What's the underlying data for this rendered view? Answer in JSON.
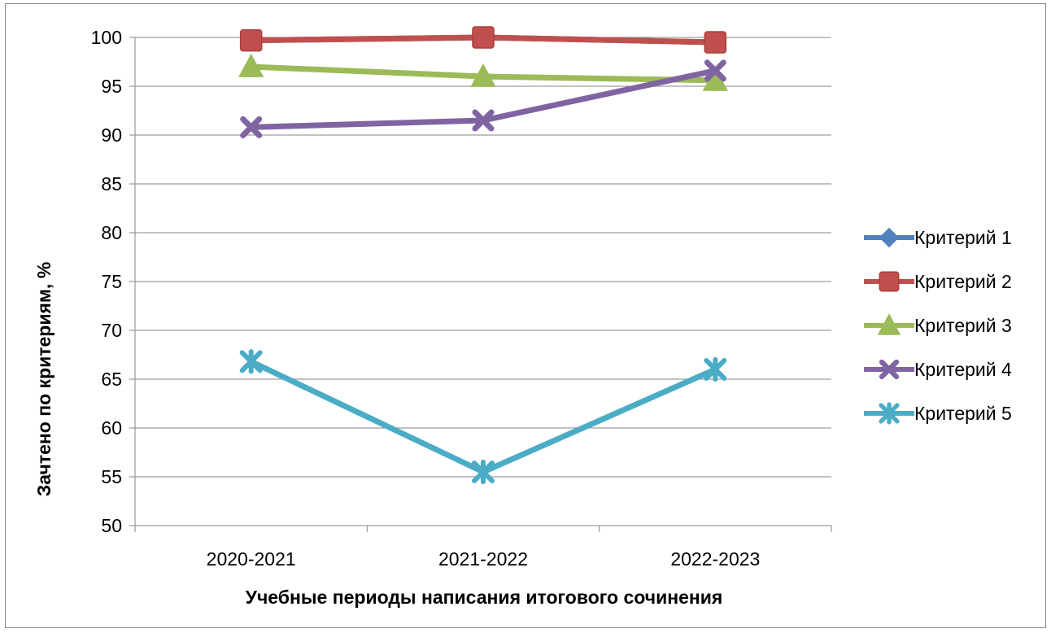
{
  "chart_data": {
    "type": "line",
    "title": "",
    "xlabel": "Учебные периоды написания итогового сочинения",
    "ylabel": "Зачтено по критериям, %",
    "categories": [
      "2020-2021",
      "2021-2022",
      "2022-2023"
    ],
    "ylim": [
      50,
      100
    ],
    "yticks": [
      50,
      55,
      60,
      65,
      70,
      75,
      80,
      85,
      90,
      95,
      100
    ],
    "grid": true,
    "legend_position": "right",
    "series": [
      {
        "name": "Критерий 1",
        "values": [
          99.7,
          100,
          99.5
        ],
        "color": "#4F81BD",
        "marker": "diamond"
      },
      {
        "name": "Критерий 2",
        "values": [
          99.7,
          100,
          99.5
        ],
        "color": "#C0504D",
        "marker": "square"
      },
      {
        "name": "Критерий 3",
        "values": [
          97,
          96,
          95.6
        ],
        "color": "#9BBB59",
        "marker": "triangle"
      },
      {
        "name": "Критерий 4",
        "values": [
          90.8,
          91.5,
          96.6
        ],
        "color": "#8064A2",
        "marker": "x"
      },
      {
        "name": "Критерий 5",
        "values": [
          66.8,
          55.5,
          66
        ],
        "color": "#4BACC6",
        "marker": "star"
      }
    ]
  }
}
